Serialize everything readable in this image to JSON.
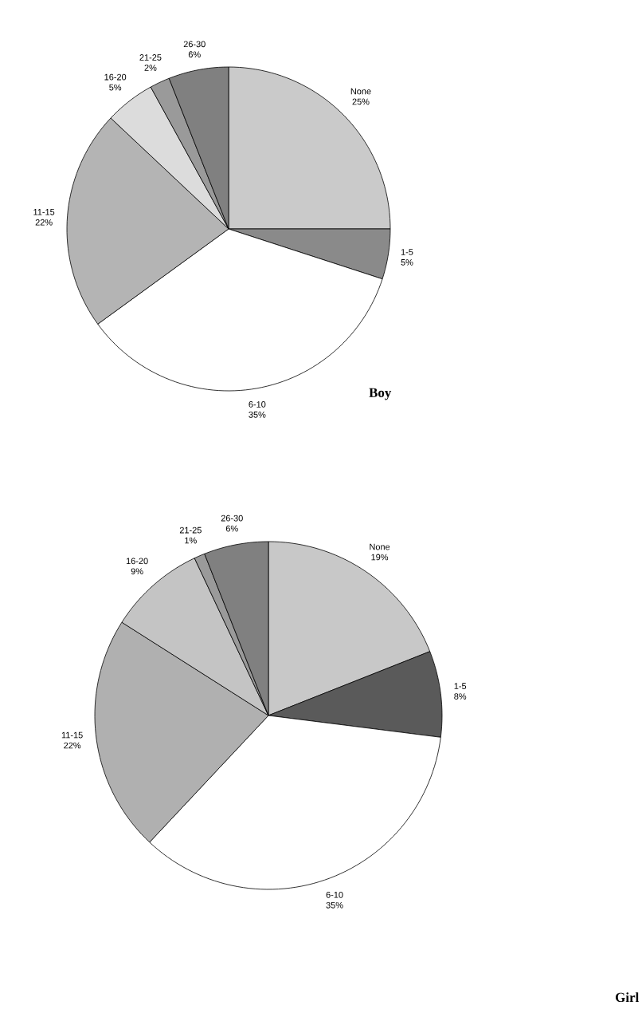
{
  "chart_data": [
    {
      "type": "pie",
      "title": "Boy",
      "categories": [
        "None",
        "1-5",
        "6-10",
        "11-15",
        "16-20",
        "21-25",
        "26-30"
      ],
      "values": [
        25,
        5,
        35,
        22,
        5,
        2,
        6
      ],
      "value_labels": [
        "25%",
        "5%",
        "35%",
        "22%",
        "5%",
        "2%",
        "6%"
      ],
      "colors": [
        "#cacaca",
        "#8a8a8a",
        "#ffffff",
        "#b4b4b4",
        "#dcdcdc",
        "#9a9a9a",
        "#808080"
      ]
    },
    {
      "type": "pie",
      "title": "Girl",
      "categories": [
        "None",
        "1-5",
        "6-10",
        "11-15",
        "16-20",
        "21-25",
        "26-30"
      ],
      "values": [
        19,
        8,
        35,
        22,
        9,
        1,
        6
      ],
      "value_labels": [
        "19%",
        "8%",
        "35%",
        "22%",
        "9%",
        "1%",
        "6%"
      ],
      "colors": [
        "#c8c8c8",
        "#5a5a5a",
        "#ffffff",
        "#b0b0b0",
        "#c4c4c4",
        "#9a9a9a",
        "#808080"
      ]
    }
  ]
}
